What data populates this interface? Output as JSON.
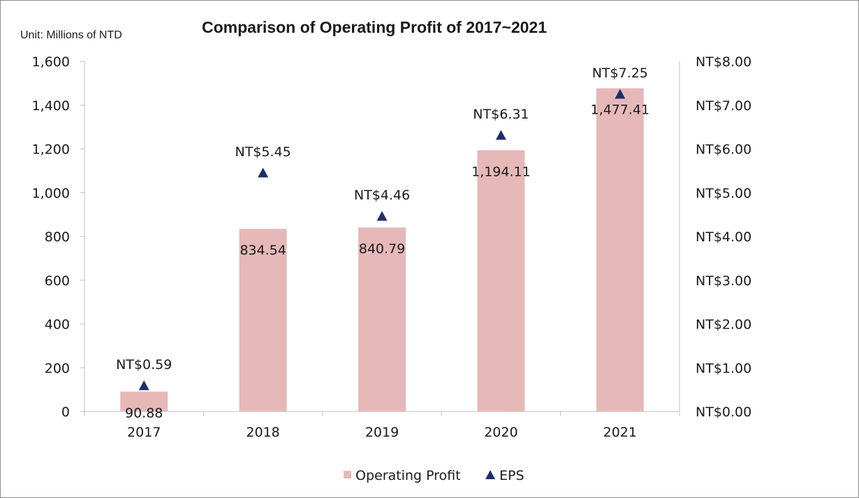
{
  "chart_data": {
    "type": "bar",
    "title": "Comparison of Operating Profit of 2017~2021",
    "unit_label": "Unit: Millions of NTD",
    "categories": [
      "2017",
      "2018",
      "2019",
      "2020",
      "2021"
    ],
    "series": [
      {
        "name": "Operating Profit",
        "type": "bar",
        "axis": "left",
        "values": [
          90.88,
          834.54,
          840.79,
          1194.11,
          1477.41
        ],
        "labels": [
          "90.88",
          "834.54",
          "840.79",
          "1,194.11",
          "1,477.41"
        ],
        "color": "#e6b9b8"
      },
      {
        "name": "EPS",
        "type": "scatter",
        "marker": "triangle",
        "axis": "right",
        "values": [
          0.59,
          5.45,
          4.46,
          6.31,
          7.25
        ],
        "labels": [
          "NT$0.59",
          "NT$5.45",
          "NT$4.46",
          "NT$6.31",
          "NT$7.25"
        ],
        "color": "#1f2d6b"
      }
    ],
    "y_left": {
      "range": [
        0,
        1600
      ],
      "ticks": [
        0,
        200,
        400,
        600,
        800,
        1000,
        1200,
        1400,
        1600
      ],
      "tick_labels": [
        "0",
        "200",
        "400",
        "600",
        "800",
        "1,000",
        "1,200",
        "1,400",
        "1,600"
      ]
    },
    "y_right": {
      "range": [
        0,
        8
      ],
      "ticks": [
        0,
        1,
        2,
        3,
        4,
        5,
        6,
        7,
        8
      ],
      "tick_labels": [
        "NT$0.00",
        "NT$1.00",
        "NT$2.00",
        "NT$3.00",
        "NT$4.00",
        "NT$5.00",
        "NT$6.00",
        "NT$7.00",
        "NT$8.00"
      ]
    },
    "grid": false,
    "legend_position": "bottom",
    "axis_color": "#bfbfbf"
  }
}
